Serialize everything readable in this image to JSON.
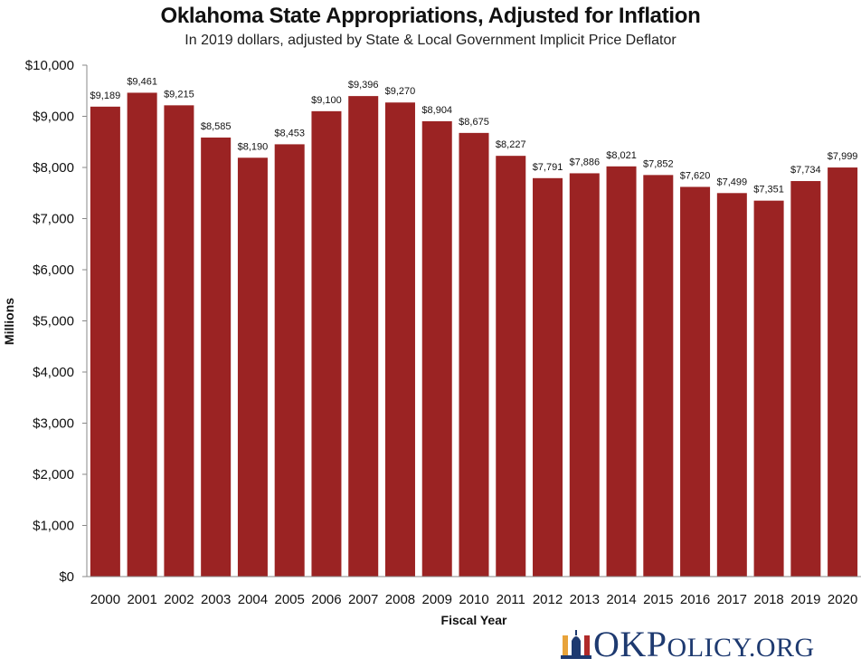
{
  "chart_data": {
    "type": "bar",
    "title": "Oklahoma State Appropriations, Adjusted for Inflation",
    "subtitle": "In 2019 dollars, adjusted by State & Local Government Implicit Price Deflator",
    "xlabel": "Fiscal Year",
    "ylabel": "Millions",
    "categories": [
      "2000",
      "2001",
      "2002",
      "2003",
      "2004",
      "2005",
      "2006",
      "2007",
      "2008",
      "2009",
      "2010",
      "2011",
      "2012",
      "2013",
      "2014",
      "2015",
      "2016",
      "2017",
      "2018",
      "2019",
      "2020"
    ],
    "values": [
      9189,
      9461,
      9215,
      8585,
      8190,
      8453,
      9100,
      9396,
      9270,
      8904,
      8675,
      8227,
      7791,
      7886,
      8021,
      7852,
      7620,
      7499,
      7351,
      7734,
      7999
    ],
    "data_labels": [
      "$9,189",
      "$9,461",
      "$9,215",
      "$8,585",
      "$8,190",
      "$8,453",
      "$9,100",
      "$9,396",
      "$9,270",
      "$8,904",
      "$8,675",
      "$8,227",
      "$7,791",
      "$7,886",
      "$8,021",
      "$7,852",
      "$7,620",
      "$7,499",
      "$7,351",
      "$7,734",
      "$7,999"
    ],
    "ylim": [
      0,
      10000
    ],
    "y_ticks": [
      0,
      1000,
      2000,
      3000,
      4000,
      5000,
      6000,
      7000,
      8000,
      9000,
      10000
    ],
    "y_tick_labels": [
      "$0",
      "$1,000",
      "$2,000",
      "$3,000",
      "$4,000",
      "$5,000",
      "$6,000",
      "$7,000",
      "$8,000",
      "$9,000",
      "$10,000"
    ],
    "grid": false,
    "legend": "none",
    "bar_color": "#9b2323"
  },
  "logo": {
    "text_ok": "OK",
    "text_policy_p": "P",
    "text_policy_rest": "OLICY",
    "text_tld": ".ORG",
    "colors": {
      "text": "#1e3a70",
      "orange": "#e8a33a",
      "red": "#b02a2a"
    }
  }
}
